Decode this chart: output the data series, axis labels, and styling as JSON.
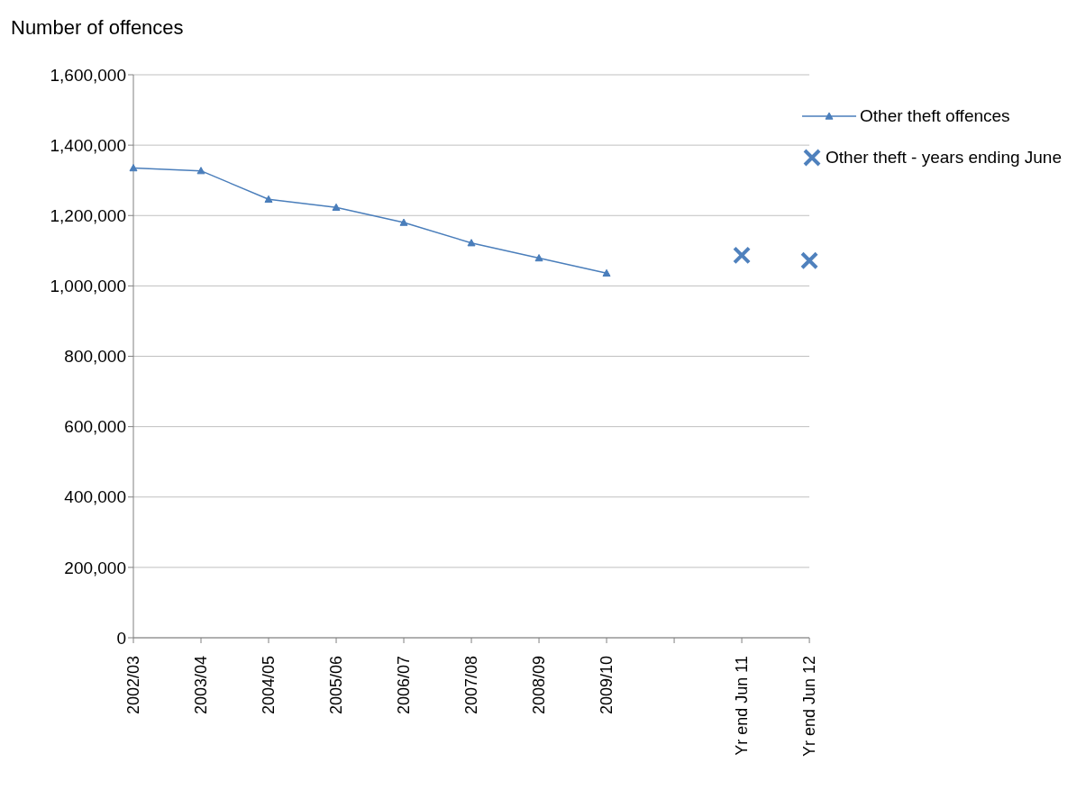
{
  "chart_data": {
    "type": "line",
    "ylabel": "Number of offences",
    "categories": [
      "2002/03",
      "2003/04",
      "2004/05",
      "2005/06",
      "2006/07",
      "2007/08",
      "2008/09",
      "2009/10",
      null,
      "Yr end Jun 11",
      "Yr end Jun 12"
    ],
    "series": [
      {
        "name": "Other theft offences",
        "color": "#4a7ebb",
        "marker": "triangle",
        "values": [
          1335000,
          1327000,
          1246000,
          1223000,
          1180000,
          1122000,
          1079000,
          1036000,
          null,
          null,
          null
        ]
      },
      {
        "name": "Other theft - years ending June",
        "type": "scatter",
        "color": "#4f81bd",
        "marker": "cross",
        "values": [
          null,
          null,
          null,
          null,
          null,
          null,
          null,
          null,
          null,
          1087000,
          1072000
        ]
      }
    ],
    "ylim": [
      0,
      1600000
    ],
    "yticks": [
      0,
      {
        "value": 200000,
        "label": "200,000"
      },
      {
        "value": 400000,
        "label": "400,000"
      },
      {
        "value": 600000,
        "label": "600,000"
      },
      {
        "value": 800000,
        "label": "800,000"
      },
      {
        "value": 1000000,
        "label": "1,000,000"
      },
      {
        "value": 1200000,
        "label": "1,200,000"
      },
      {
        "value": 1400000,
        "label": "1,400,000"
      },
      {
        "value": 1600000,
        "label": "1,600,000"
      }
    ],
    "grid": "y",
    "legend": "top right"
  }
}
